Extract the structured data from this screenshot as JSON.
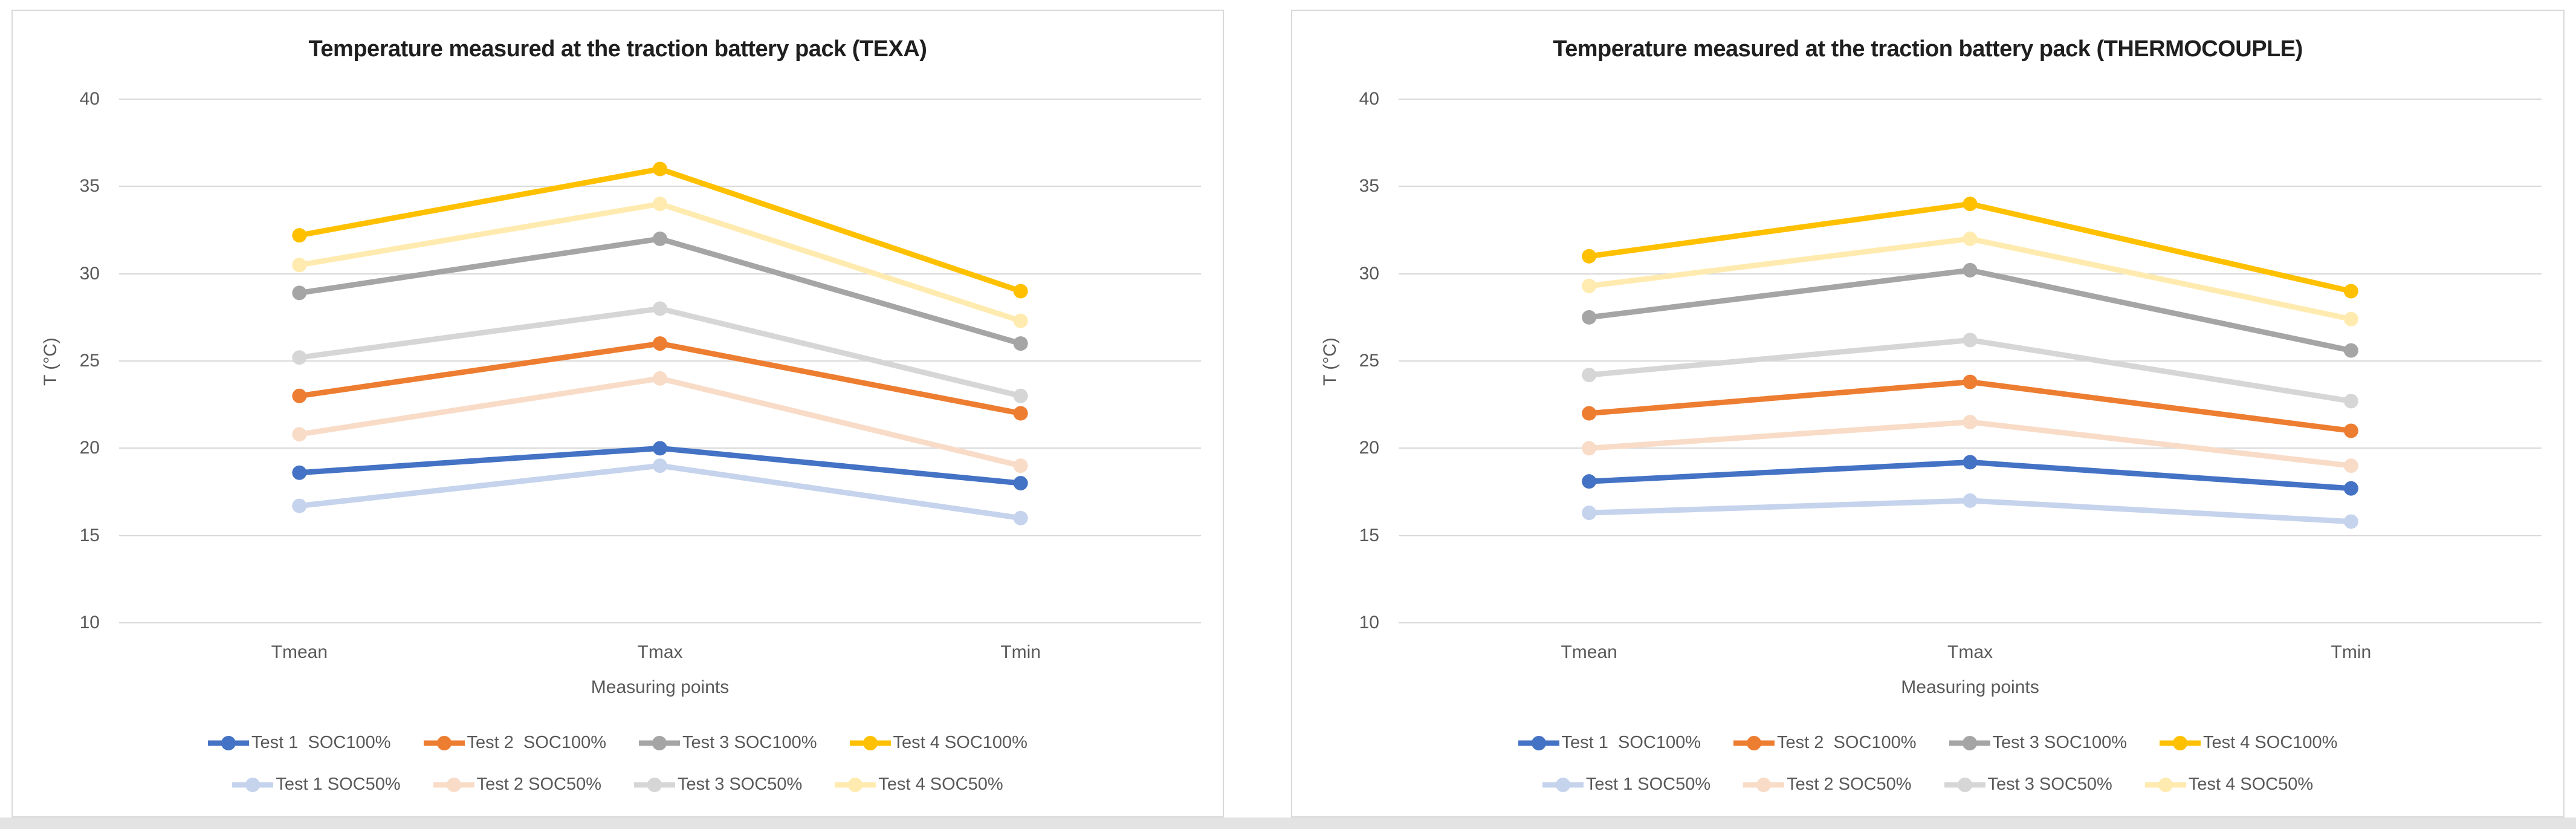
{
  "page": {
    "background_color": "#ffffff",
    "bottom_strip_color": "#e3e3e3",
    "card_border_color": "#d9d9d9",
    "gridline_color": "#d9d9d9",
    "axis_text_color": "#595959",
    "title_text_color": "#1f1f1f"
  },
  "chart_data": [
    {
      "type": "line",
      "title": "Temperature measured at the traction battery pack (TEXA)",
      "xlabel": "Measuring points",
      "ylabel": "T (°C)",
      "categories": [
        "Tmean",
        "Tmax",
        "Tmin"
      ],
      "ylim": [
        10,
        40
      ],
      "yticks": [
        40,
        35,
        30,
        25,
        20,
        15,
        10
      ],
      "grid": true,
      "legend_position": "bottom",
      "legend_rows": [
        [
          0,
          1,
          2,
          3
        ],
        [
          4,
          5,
          6,
          7
        ]
      ],
      "series": [
        {
          "name": "Test 1  SOC100%",
          "color": "#4472C4",
          "values": [
            18.6,
            20,
            18
          ]
        },
        {
          "name": "Test 2  SOC100%",
          "color": "#ED7D31",
          "values": [
            23,
            26,
            22
          ]
        },
        {
          "name": "Test 3 SOC100%",
          "color": "#A5A5A5",
          "values": [
            28.9,
            32,
            26
          ]
        },
        {
          "name": "Test 4 SOC100%",
          "color": "#FFC000",
          "values": [
            32.2,
            36,
            29
          ]
        },
        {
          "name": "Test 1 SOC50%",
          "color": "#C5D3EC",
          "values": [
            16.7,
            19,
            16
          ]
        },
        {
          "name": "Test 2 SOC50%",
          "color": "#F8DCC8",
          "values": [
            20.8,
            24,
            19
          ]
        },
        {
          "name": "Test 3 SOC50%",
          "color": "#D6D6D6",
          "values": [
            25.2,
            28,
            23
          ]
        },
        {
          "name": "Test 4 SOC50%",
          "color": "#FFEBB0",
          "values": [
            30.5,
            34,
            27.3
          ]
        }
      ]
    },
    {
      "type": "line",
      "title": "Temperature measured at the traction battery pack (THERMOCOUPLE)",
      "xlabel": "Measuring points",
      "ylabel": "T (°C)",
      "categories": [
        "Tmean",
        "Tmax",
        "Tmin"
      ],
      "ylim": [
        10,
        40
      ],
      "yticks": [
        40,
        35,
        30,
        25,
        20,
        15,
        10
      ],
      "grid": true,
      "legend_position": "bottom",
      "legend_rows": [
        [
          0,
          1,
          2,
          3
        ],
        [
          4,
          5,
          6,
          7
        ]
      ],
      "series": [
        {
          "name": "Test 1  SOC100%",
          "color": "#4472C4",
          "values": [
            18.1,
            19.2,
            17.7
          ]
        },
        {
          "name": "Test 2  SOC100%",
          "color": "#ED7D31",
          "values": [
            22,
            23.8,
            21
          ]
        },
        {
          "name": "Test 3 SOC100%",
          "color": "#A5A5A5",
          "values": [
            27.5,
            30.2,
            25.6
          ]
        },
        {
          "name": "Test 4 SOC100%",
          "color": "#FFC000",
          "values": [
            31,
            34,
            29
          ]
        },
        {
          "name": "Test 1 SOC50%",
          "color": "#C5D3EC",
          "values": [
            16.3,
            17,
            15.8
          ]
        },
        {
          "name": "Test 2 SOC50%",
          "color": "#F8DCC8",
          "values": [
            20,
            21.5,
            19
          ]
        },
        {
          "name": "Test 3 SOC50%",
          "color": "#D6D6D6",
          "values": [
            24.2,
            26.2,
            22.7
          ]
        },
        {
          "name": "Test 4 SOC50%",
          "color": "#FFEBB0",
          "values": [
            29.3,
            32,
            27.4
          ]
        }
      ]
    }
  ]
}
